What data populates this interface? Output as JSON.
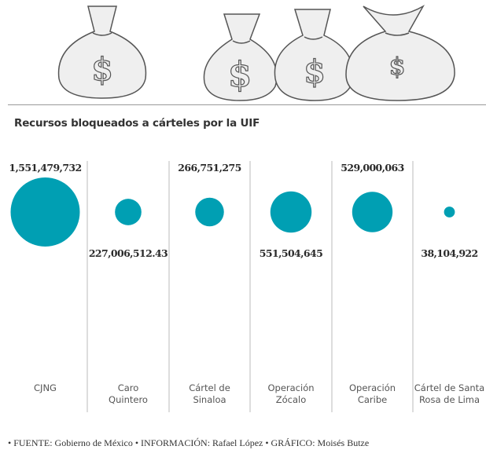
{
  "header": {
    "icon": "money-bags-icon"
  },
  "chart_data": {
    "type": "bubble",
    "title": "Recursos bloqueados a cárteles por la UIF",
    "categories": [
      [
        "CJNG"
      ],
      [
        "Caro",
        "Quintero"
      ],
      [
        "Cártel de",
        "Sinaloa"
      ],
      [
        "Operación",
        "Zócalo"
      ],
      [
        "Operación",
        "Caribe"
      ],
      [
        "Cártel de Santa",
        "Rosa de Lima"
      ]
    ],
    "values": [
      1551479732,
      227006512.43,
      266751275,
      551504645,
      529000063,
      38104922
    ],
    "value_labels": [
      "1,551,479,732",
      "227,006,512.43",
      "266,751,275",
      "551,504,645",
      "529,000,063",
      "38,104,922"
    ],
    "label_positions": [
      "above",
      "below",
      "above",
      "below",
      "above",
      "below"
    ],
    "color": "#009fb3"
  },
  "footer": {
    "text": "• FUENTE: Gobierno de México • INFORMACIÓN: Rafael López • GRÁFICO: Moisés Butze"
  }
}
